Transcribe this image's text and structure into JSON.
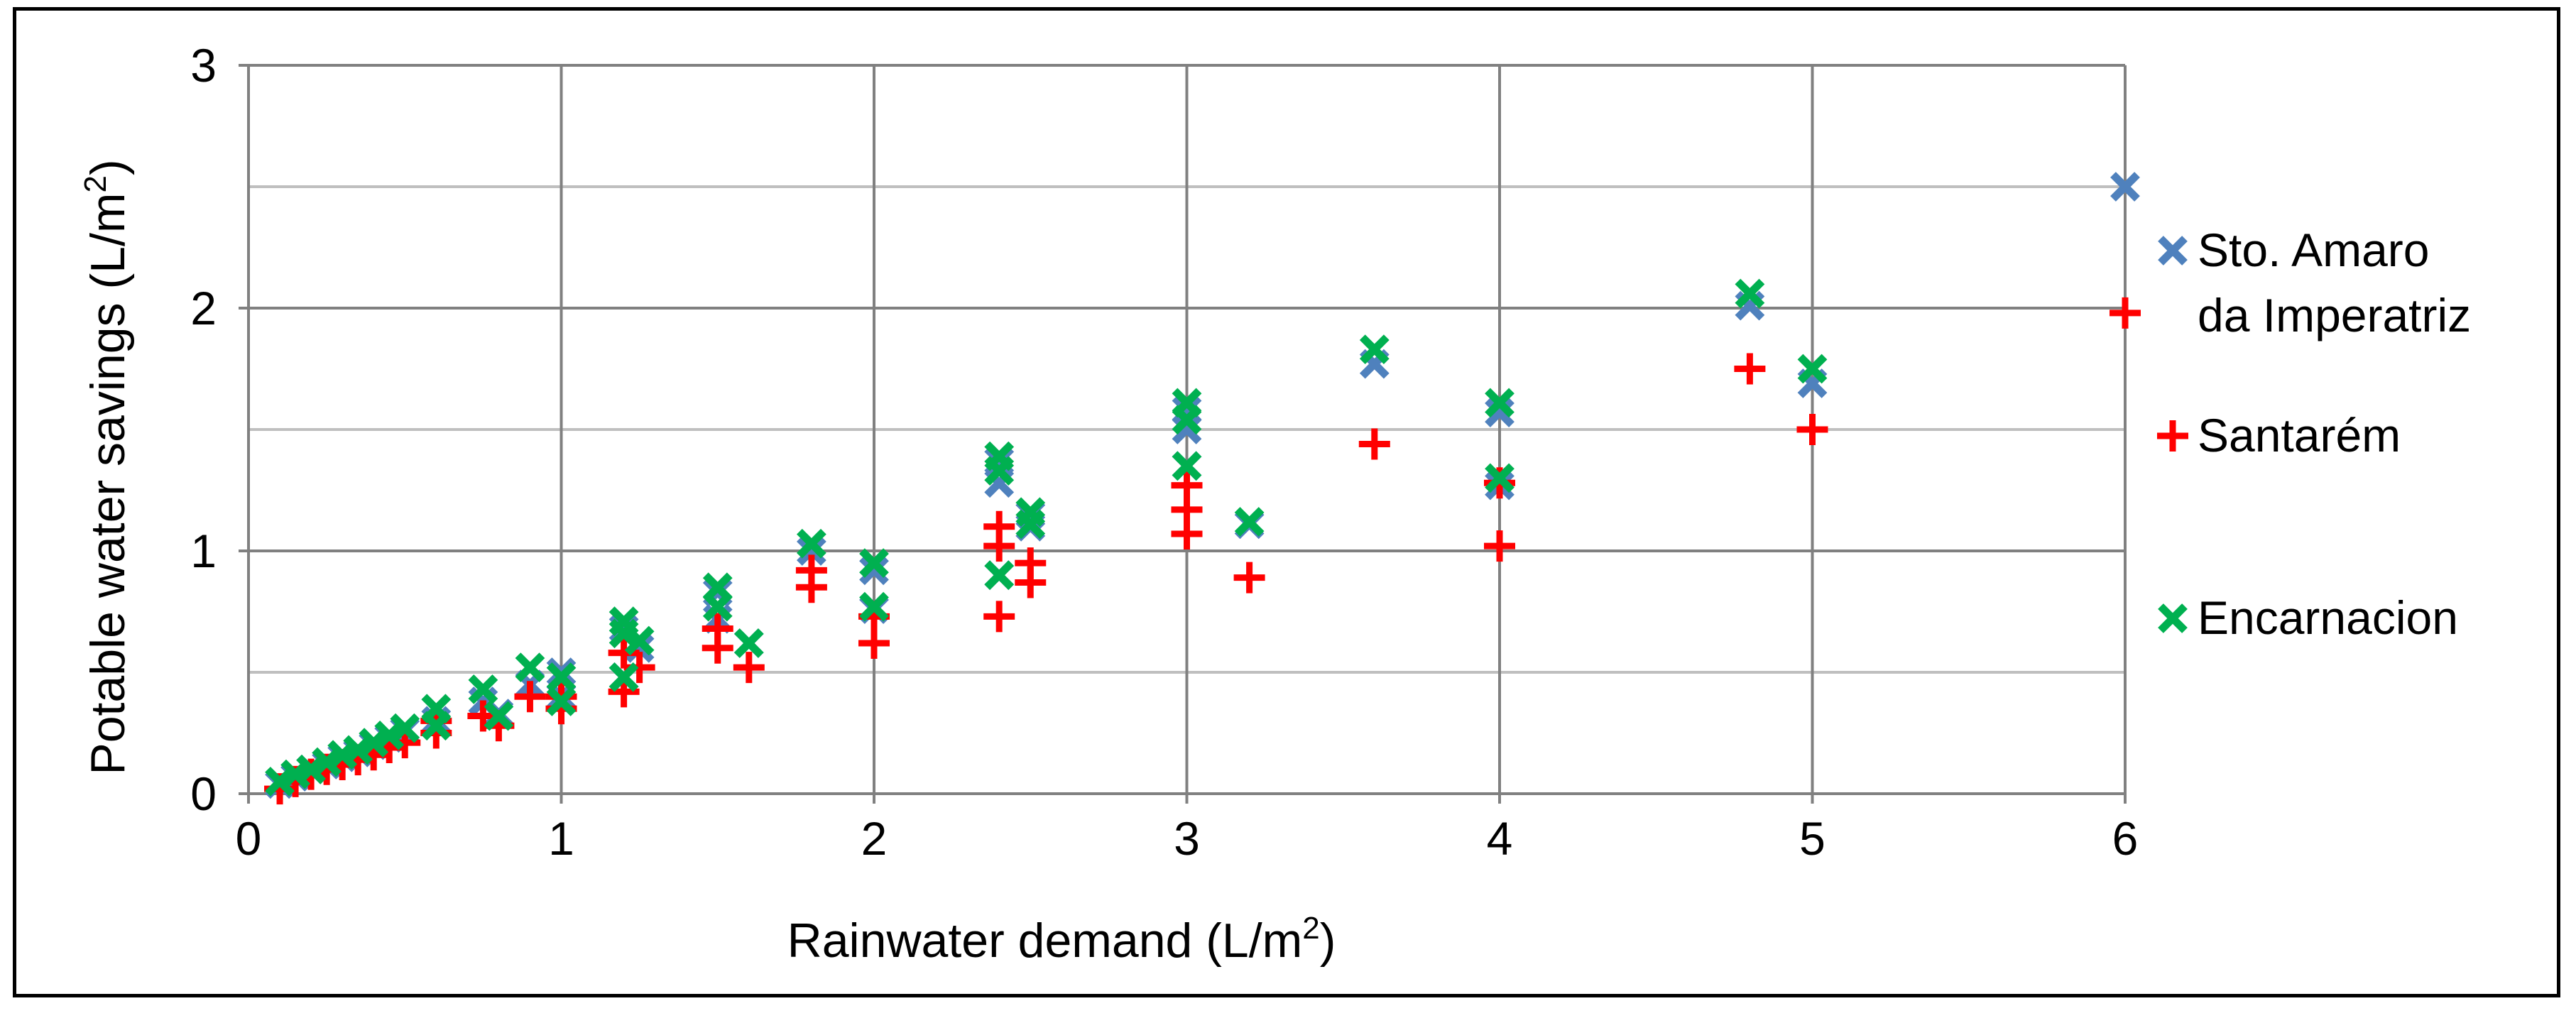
{
  "chart_data": {
    "type": "scatter",
    "title": "",
    "xlabel": "Rainwater demand  (L/m",
    "xlabel_sup": "2",
    "xlabel_suffix": ")",
    "ylabel": "Potable water savings  (L/m",
    "ylabel_sup": "2",
    "ylabel_suffix": ")",
    "xlim": [
      0,
      6
    ],
    "ylim": [
      0,
      3
    ],
    "x_major_step": 1,
    "y_major_step": 1,
    "y_minor_step": 0.5,
    "grid": true,
    "x_ticks": [
      "0",
      "1",
      "2",
      "3",
      "4",
      "5",
      "6"
    ],
    "y_ticks": [
      "0",
      "1",
      "2",
      "3"
    ],
    "legend_position": "right",
    "colors": {
      "sto_amaro": "#4F81BD",
      "santarem": "#FF0000",
      "encarnacion": "#00B050",
      "grid_major": "#808080",
      "grid_minor": "#BFBFBF"
    },
    "series": [
      {
        "name": "Sto. Amaro da Imperatriz",
        "legend_lines": [
          "Sto. Amaro",
          "da Imperatriz"
        ],
        "marker": "x",
        "color": "#4F81BD",
        "points": [
          [
            0.1,
            0.04
          ],
          [
            0.15,
            0.07
          ],
          [
            0.2,
            0.1
          ],
          [
            0.25,
            0.12
          ],
          [
            0.3,
            0.15
          ],
          [
            0.35,
            0.17
          ],
          [
            0.4,
            0.2
          ],
          [
            0.45,
            0.23
          ],
          [
            0.5,
            0.26
          ],
          [
            0.6,
            0.3
          ],
          [
            0.75,
            0.38
          ],
          [
            0.8,
            0.33
          ],
          [
            0.9,
            0.45
          ],
          [
            1.0,
            0.5
          ],
          [
            1.0,
            0.4
          ],
          [
            1.2,
            0.68
          ],
          [
            1.2,
            0.48
          ],
          [
            1.25,
            0.6
          ],
          [
            1.5,
            0.83
          ],
          [
            1.5,
            0.72
          ],
          [
            1.6,
            0.62
          ],
          [
            1.8,
            1.0
          ],
          [
            2.0,
            0.92
          ],
          [
            2.0,
            0.76
          ],
          [
            2.4,
            1.37
          ],
          [
            2.4,
            1.28
          ],
          [
            2.4,
            0.9
          ],
          [
            2.5,
            1.15
          ],
          [
            2.5,
            1.1
          ],
          [
            3.0,
            1.58
          ],
          [
            3.0,
            1.5
          ],
          [
            3.0,
            1.35
          ],
          [
            3.2,
            1.11
          ],
          [
            3.6,
            1.77
          ],
          [
            4.0,
            1.57
          ],
          [
            4.0,
            1.27
          ],
          [
            4.8,
            2.01
          ],
          [
            5.0,
            1.69
          ],
          [
            6.0,
            2.5
          ]
        ]
      },
      {
        "name": "Santarém",
        "legend_lines": [
          "Santarém"
        ],
        "marker": "+",
        "color": "#FF0000",
        "points": [
          [
            0.1,
            0.02
          ],
          [
            0.15,
            0.05
          ],
          [
            0.2,
            0.08
          ],
          [
            0.25,
            0.1
          ],
          [
            0.3,
            0.12
          ],
          [
            0.35,
            0.14
          ],
          [
            0.4,
            0.16
          ],
          [
            0.45,
            0.19
          ],
          [
            0.5,
            0.21
          ],
          [
            0.6,
            0.25
          ],
          [
            0.6,
            0.3
          ],
          [
            0.75,
            0.32
          ],
          [
            0.8,
            0.28
          ],
          [
            0.9,
            0.4
          ],
          [
            1.0,
            0.35
          ],
          [
            1.0,
            0.4
          ],
          [
            1.2,
            0.58
          ],
          [
            1.2,
            0.42
          ],
          [
            1.25,
            0.52
          ],
          [
            1.5,
            0.68
          ],
          [
            1.5,
            0.6
          ],
          [
            1.6,
            0.52
          ],
          [
            1.8,
            0.92
          ],
          [
            1.8,
            0.85
          ],
          [
            2.0,
            0.73
          ],
          [
            2.0,
            0.62
          ],
          [
            2.4,
            1.1
          ],
          [
            2.4,
            1.02
          ],
          [
            2.4,
            0.73
          ],
          [
            2.5,
            0.95
          ],
          [
            2.5,
            0.87
          ],
          [
            3.0,
            1.27
          ],
          [
            3.0,
            1.17
          ],
          [
            3.0,
            1.07
          ],
          [
            3.2,
            0.89
          ],
          [
            3.6,
            1.44
          ],
          [
            4.0,
            1.28
          ],
          [
            4.0,
            1.02
          ],
          [
            4.8,
            1.75
          ],
          [
            5.0,
            1.5
          ],
          [
            6.0,
            1.98
          ]
        ]
      },
      {
        "name": "Encarnacion",
        "legend_lines": [
          "Encarnacion"
        ],
        "marker": "x",
        "color": "#00B050",
        "points": [
          [
            0.1,
            0.05
          ],
          [
            0.15,
            0.08
          ],
          [
            0.2,
            0.1
          ],
          [
            0.25,
            0.13
          ],
          [
            0.3,
            0.16
          ],
          [
            0.35,
            0.18
          ],
          [
            0.4,
            0.21
          ],
          [
            0.45,
            0.24
          ],
          [
            0.5,
            0.27
          ],
          [
            0.6,
            0.35
          ],
          [
            0.6,
            0.28
          ],
          [
            0.75,
            0.43
          ],
          [
            0.8,
            0.32
          ],
          [
            0.9,
            0.52
          ],
          [
            1.0,
            0.48
          ],
          [
            1.0,
            0.38
          ],
          [
            1.2,
            0.71
          ],
          [
            1.2,
            0.66
          ],
          [
            1.2,
            0.48
          ],
          [
            1.25,
            0.63
          ],
          [
            1.5,
            0.85
          ],
          [
            1.5,
            0.77
          ],
          [
            1.6,
            0.62
          ],
          [
            1.8,
            1.03
          ],
          [
            2.0,
            0.95
          ],
          [
            2.0,
            0.77
          ],
          [
            2.4,
            1.39
          ],
          [
            2.4,
            1.33
          ],
          [
            2.4,
            0.9
          ],
          [
            2.5,
            1.16
          ],
          [
            2.5,
            1.11
          ],
          [
            3.0,
            1.61
          ],
          [
            3.0,
            1.54
          ],
          [
            3.0,
            1.35
          ],
          [
            3.2,
            1.12
          ],
          [
            3.6,
            1.83
          ],
          [
            4.0,
            1.61
          ],
          [
            4.0,
            1.3
          ],
          [
            4.8,
            2.06
          ],
          [
            5.0,
            1.75
          ]
        ]
      }
    ]
  }
}
